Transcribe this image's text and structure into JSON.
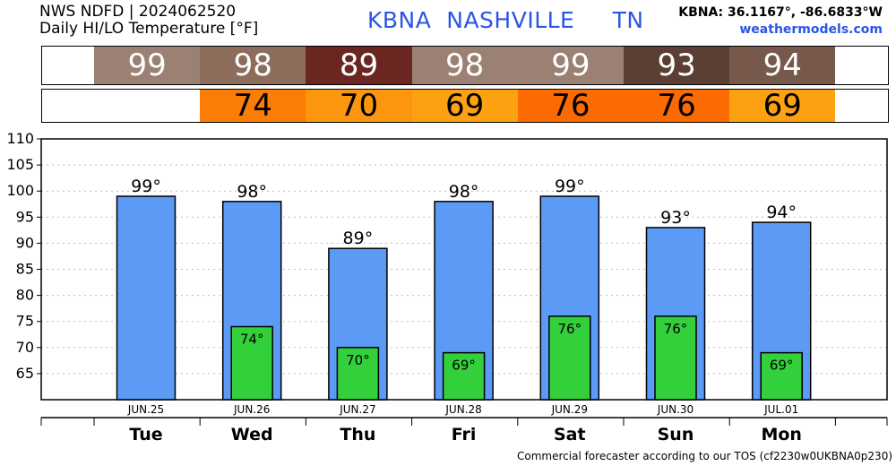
{
  "header": {
    "line1": "NWS NDFD | 2024062520",
    "line2": "Daily HI/LO Temperature [°F]",
    "station": "KBNA  NASHVILLE     TN",
    "coords": "KBNA: 36.1167°, -86.6833°W",
    "site": "weathermodels.com"
  },
  "hi_row": {
    "cells": [
      {
        "day": "Tue",
        "value": "99",
        "color": "#9b8174"
      },
      {
        "day": "Wed",
        "value": "98",
        "color": "#8c6d5c"
      },
      {
        "day": "Thu",
        "value": "89",
        "color": "#6b2622"
      },
      {
        "day": "Fri",
        "value": "98",
        "color": "#9b8174"
      },
      {
        "day": "Sat",
        "value": "99",
        "color": "#9b8174"
      },
      {
        "day": "Sun",
        "value": "93",
        "color": "#5b3f35"
      },
      {
        "day": "Mon",
        "value": "94",
        "color": "#76594b"
      }
    ]
  },
  "lo_row": {
    "cells": [
      {
        "day": "Wed",
        "value": "74",
        "color": "#fb7d07"
      },
      {
        "day": "Thu",
        "value": "70",
        "color": "#fc960f"
      },
      {
        "day": "Fri",
        "value": "69",
        "color": "#fca111"
      },
      {
        "day": "Sat",
        "value": "76",
        "color": "#fc6a02"
      },
      {
        "day": "Sun",
        "value": "76",
        "color": "#fc6a02"
      },
      {
        "day": "Mon",
        "value": "69",
        "color": "#fca111"
      }
    ]
  },
  "chart_data": {
    "type": "bar",
    "categories": [
      "Tue",
      "Wed",
      "Thu",
      "Fri",
      "Sat",
      "Sun",
      "Mon"
    ],
    "dates": [
      "JUN.25",
      "JUN.26",
      "JUN.27",
      "JUN.28",
      "JUN.29",
      "JUN.30",
      "JUL.01"
    ],
    "series": [
      {
        "name": "HI",
        "values": [
          99,
          98,
          89,
          98,
          99,
          93,
          94
        ],
        "color": "#5b9bf5"
      },
      {
        "name": "LO",
        "values": [
          null,
          74,
          70,
          69,
          76,
          76,
          69
        ],
        "color": "#33d03c"
      }
    ],
    "hi_labels": [
      "99°",
      "98°",
      "89°",
      "98°",
      "99°",
      "93°",
      "94°"
    ],
    "lo_labels": [
      "",
      "74°",
      "70°",
      "69°",
      "76°",
      "76°",
      "69°"
    ],
    "yticks": [
      65,
      70,
      75,
      80,
      85,
      90,
      95,
      100,
      105,
      110
    ],
    "ylim": [
      60,
      110
    ],
    "grid": true,
    "xlabel": "",
    "ylabel": ""
  },
  "footer": "Commercial forecaster according to our TOS (cf2230w0UKBNA0p230)"
}
